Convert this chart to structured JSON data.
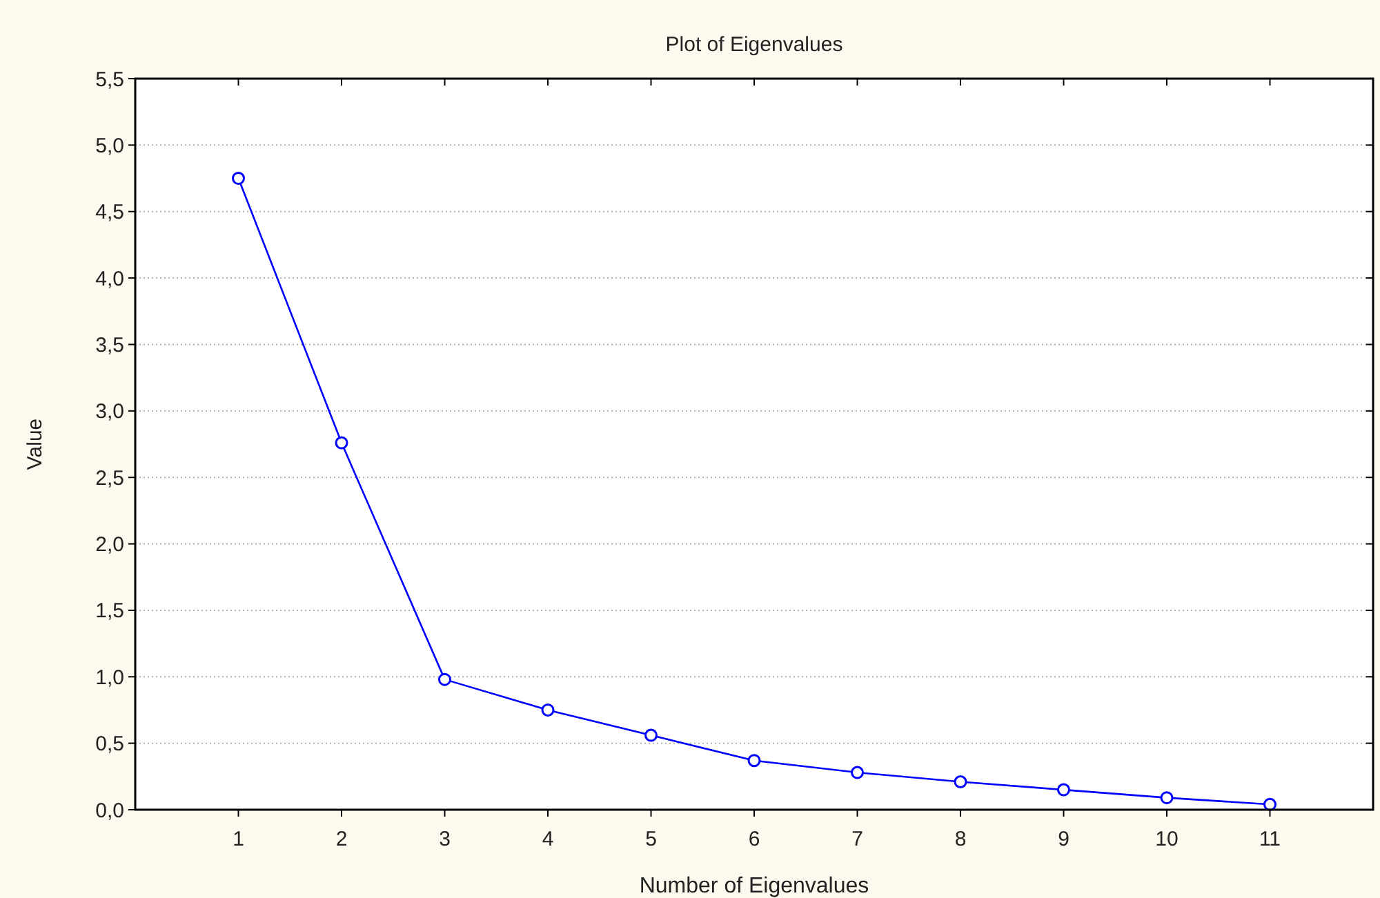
{
  "chart_data": {
    "type": "line",
    "title": "Plot of Eigenvalues",
    "xlabel": "Number of Eigenvalues",
    "ylabel": "Value",
    "x": [
      1,
      2,
      3,
      4,
      5,
      6,
      7,
      8,
      9,
      10,
      11
    ],
    "series": [
      {
        "color": "#0000ff",
        "values": [
          4.75,
          2.76,
          0.98,
          0.75,
          0.56,
          0.37,
          0.28,
          0.21,
          0.15,
          0.09,
          0.04
        ]
      }
    ],
    "xlim": [
      0,
      12
    ],
    "xticks": [
      1,
      2,
      3,
      4,
      5,
      6,
      7,
      8,
      9,
      10,
      11
    ],
    "ylim": [
      0,
      5.5
    ],
    "yticks": [
      {
        "value": 0,
        "label": "0,0"
      },
      {
        "value": 0.5,
        "label": "0,5"
      },
      {
        "value": 1,
        "label": "1,0"
      },
      {
        "value": 1.5,
        "label": "1,5"
      },
      {
        "value": 2,
        "label": "2,0"
      },
      {
        "value": 2.5,
        "label": "2,5"
      },
      {
        "value": 3,
        "label": "3,0"
      },
      {
        "value": 3.5,
        "label": "3,5"
      },
      {
        "value": 4,
        "label": "4,0"
      },
      {
        "value": 4.5,
        "label": "4,5"
      },
      {
        "value": 5,
        "label": "5,0"
      },
      {
        "value": 5.5,
        "label": "5,5"
      }
    ],
    "grid": "y",
    "marker": "circle",
    "line_style": "solid"
  }
}
